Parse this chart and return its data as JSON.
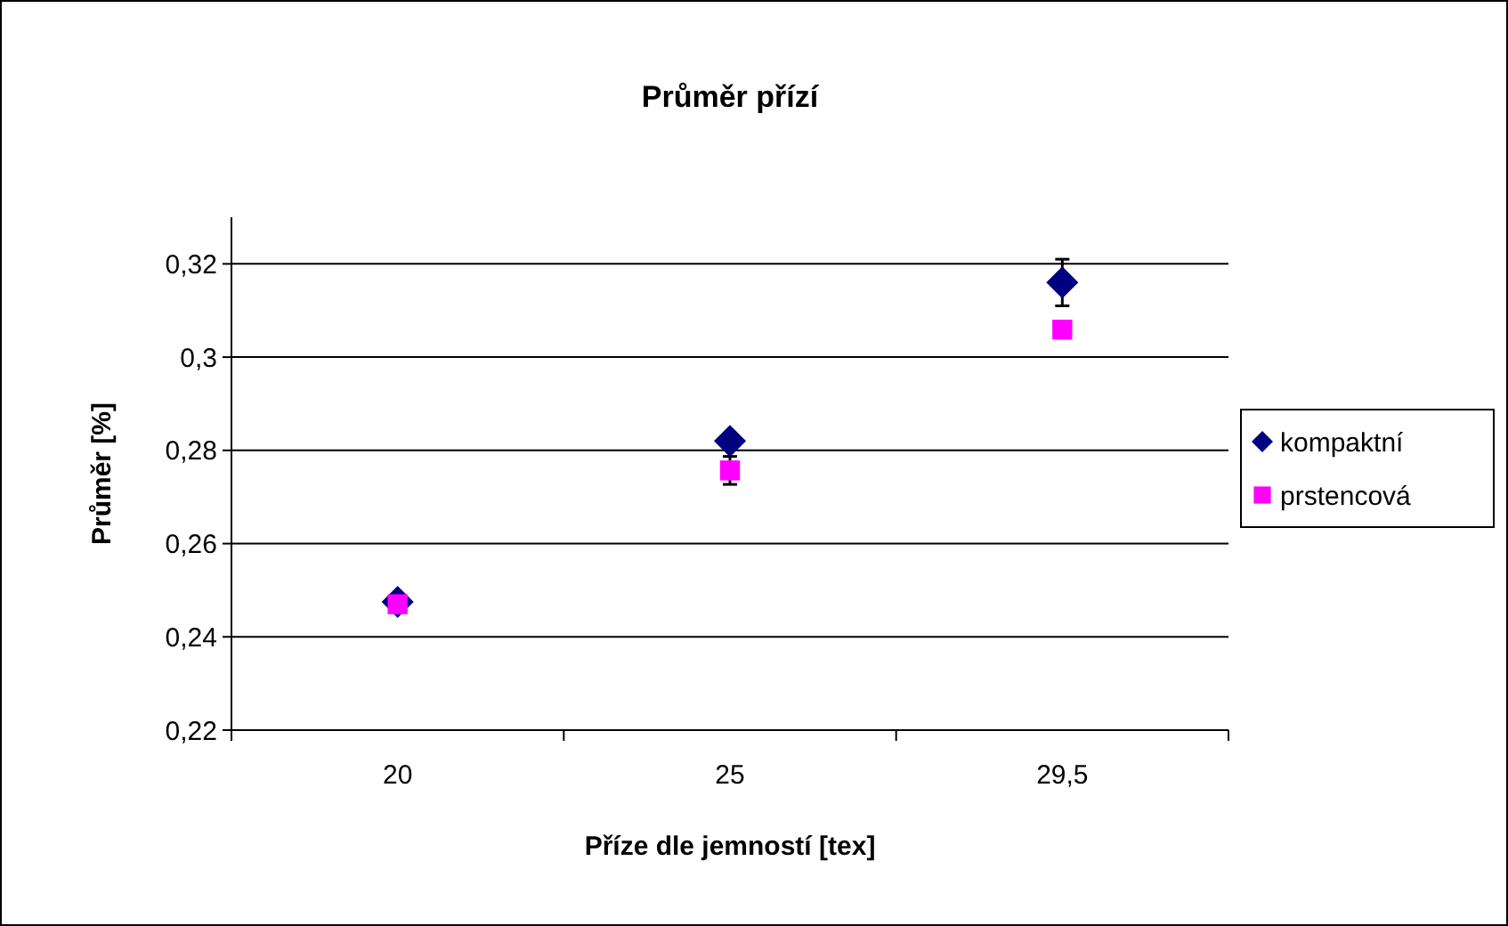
{
  "chart_data": {
    "type": "scatter",
    "title": "Průměr přízí",
    "xlabel": "Příze dle jemností [tex]",
    "ylabel": "Průměr [%]",
    "categories": [
      "20",
      "25",
      "29,5"
    ],
    "ylim": [
      0.22,
      0.33
    ],
    "yticks": [
      {
        "value": 0.22,
        "label": "0,22"
      },
      {
        "value": 0.24,
        "label": "0,24"
      },
      {
        "value": 0.26,
        "label": "0,26"
      },
      {
        "value": 0.28,
        "label": "0,28"
      },
      {
        "value": 0.3,
        "label": "0,3"
      },
      {
        "value": 0.32,
        "label": "0,32"
      }
    ],
    "grid": "y",
    "legend": "right",
    "series": [
      {
        "name": "kompaktní",
        "color": "#000080",
        "marker": "diamond",
        "values": [
          0.2475,
          0.282,
          0.316
        ],
        "errors": [
          null,
          null,
          0.005
        ]
      },
      {
        "name": "prstencová",
        "color": "#ff00ff",
        "marker": "square",
        "values": [
          0.247,
          0.2757,
          0.3059
        ],
        "errors": [
          null,
          0.003,
          null
        ]
      }
    ]
  }
}
